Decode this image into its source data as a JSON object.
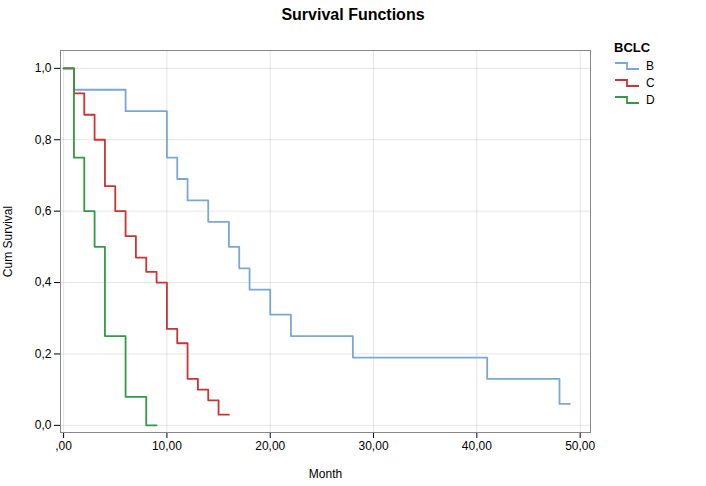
{
  "chart_data": {
    "type": "step",
    "title": "Survival Functions",
    "xlabel": "Month",
    "ylabel": "Cum Survival",
    "legend_title": "BCLC",
    "legend": "upper right",
    "grid": true,
    "xlim": [
      -0.3,
      51
    ],
    "ylim": [
      -0.02,
      1.05
    ],
    "xticks": [
      {
        "value": 0,
        "label": ",00"
      },
      {
        "value": 10,
        "label": "10,00"
      },
      {
        "value": 20,
        "label": "20,00"
      },
      {
        "value": 30,
        "label": "30,00"
      },
      {
        "value": 40,
        "label": "40,00"
      },
      {
        "value": 50,
        "label": "50,00"
      }
    ],
    "yticks": [
      {
        "value": 0.0,
        "label": "0,0"
      },
      {
        "value": 0.2,
        "label": "0,2"
      },
      {
        "value": 0.4,
        "label": "0,4"
      },
      {
        "value": 0.6,
        "label": "0,6"
      },
      {
        "value": 0.8,
        "label": "0,8"
      },
      {
        "value": 1.0,
        "label": "1,0"
      }
    ],
    "series": [
      {
        "name": "B",
        "color": "#7BA7D4",
        "x": [
          0,
          1,
          2,
          3,
          4,
          6,
          8,
          10,
          11,
          12,
          13,
          14,
          15,
          16,
          17,
          18,
          20,
          22,
          24,
          26,
          28,
          30,
          34,
          38,
          40,
          41,
          44,
          48,
          49
        ],
        "values": [
          1.0,
          0.94,
          0.94,
          0.94,
          0.94,
          0.88,
          0.88,
          0.75,
          0.69,
          0.63,
          0.63,
          0.57,
          0.57,
          0.5,
          0.44,
          0.38,
          0.31,
          0.25,
          0.25,
          0.25,
          0.19,
          0.19,
          0.19,
          0.19,
          0.19,
          0.13,
          0.13,
          0.06,
          0.06
        ]
      },
      {
        "name": "C",
        "color": "#CC3333",
        "x": [
          0,
          1,
          2,
          3,
          4,
          5,
          6,
          7,
          8,
          9,
          10,
          11,
          12,
          13,
          14,
          15,
          16
        ],
        "values": [
          1.0,
          0.93,
          0.87,
          0.8,
          0.67,
          0.6,
          0.53,
          0.47,
          0.43,
          0.4,
          0.27,
          0.23,
          0.13,
          0.1,
          0.07,
          0.03,
          0.03
        ]
      },
      {
        "name": "D",
        "color": "#339944",
        "x": [
          0,
          1,
          2,
          3,
          4,
          5,
          6,
          7,
          8,
          9
        ],
        "values": [
          1.0,
          0.75,
          0.6,
          0.5,
          0.25,
          0.25,
          0.08,
          0.08,
          0.0,
          0.0
        ]
      }
    ]
  }
}
